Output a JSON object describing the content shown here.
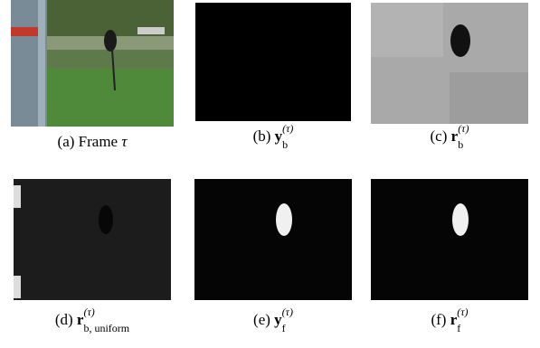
{
  "panels": [
    {
      "label": "(a)",
      "text": "Frame",
      "symbol": "τ"
    },
    {
      "label": "(b)",
      "symbol": "y",
      "sub": "b",
      "sup": "(τ)"
    },
    {
      "label": "(c)",
      "symbol": "r",
      "sub": "b",
      "sup": "(τ)"
    },
    {
      "label": "(d)",
      "symbol": "r",
      "sub": "b, uniform",
      "sup": "(τ)"
    },
    {
      "label": "(e)",
      "symbol": "y",
      "sub": "f",
      "sup": "(τ)"
    },
    {
      "label": "(f)",
      "symbol": "r",
      "sub": "f",
      "sup": "(τ)"
    }
  ]
}
